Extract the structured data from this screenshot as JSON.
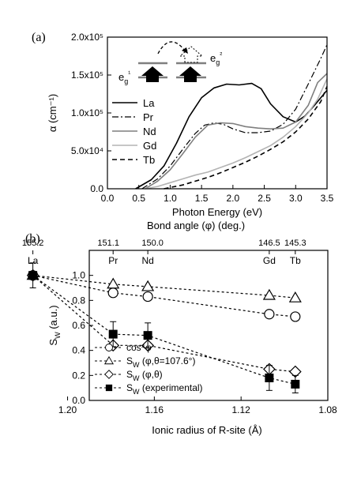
{
  "figure": {
    "panel_a_label": "(a)",
    "panel_b_label": "(b)"
  },
  "chart_data": [
    {
      "type": "line",
      "xlabel": "Photon Energy (eV)",
      "ylabel": "α (cm⁻¹)",
      "xlim": [
        0.0,
        3.5
      ],
      "ylim": [
        0,
        200000
      ],
      "xticks": [
        0.0,
        0.5,
        1.0,
        1.5,
        2.0,
        2.5,
        3.0,
        3.5
      ],
      "xtick_labels": [
        "0.0",
        "0.5",
        "1.0",
        "1.5",
        "2.0",
        "2.5",
        "3.0",
        "3.5"
      ],
      "yticks": [
        0,
        50000,
        100000,
        150000,
        200000
      ],
      "ytick_labels": [
        "0.0",
        "5.0x10⁴",
        "1.0x10⁵",
        "1.5x10⁵",
        "2.0x10⁵"
      ],
      "legend_position": "left",
      "inset": {
        "left_label": "e_g¹",
        "right_label": "e_g²"
      },
      "series": [
        {
          "name": "La",
          "color": "#000000",
          "dash": "solid",
          "width": 1.6,
          "x": [
            0.45,
            0.7,
            0.9,
            1.1,
            1.3,
            1.5,
            1.7,
            1.9,
            2.1,
            2.3,
            2.45,
            2.6,
            2.8,
            3.0,
            3.15,
            3.3,
            3.5
          ],
          "y": [
            0,
            12000,
            30000,
            60000,
            95000,
            120000,
            133000,
            138000,
            137000,
            139000,
            132000,
            112000,
            95000,
            88000,
            96000,
            110000,
            130000
          ]
        },
        {
          "name": "Pr",
          "color": "#000000",
          "dash": "dashdot",
          "width": 1.2,
          "x": [
            0.55,
            0.8,
            1.0,
            1.2,
            1.4,
            1.55,
            1.7,
            1.85,
            2.0,
            2.2,
            2.4,
            2.6,
            2.8,
            3.0,
            3.2,
            3.4,
            3.5
          ],
          "y": [
            0,
            13000,
            30000,
            52000,
            73000,
            84000,
            87000,
            85000,
            79000,
            74000,
            74000,
            76000,
            85000,
            105000,
            138000,
            172000,
            190000
          ]
        },
        {
          "name": "Nd",
          "color": "#7f7f7f",
          "dash": "solid",
          "width": 1.6,
          "x": [
            0.6,
            0.8,
            1.0,
            1.2,
            1.4,
            1.6,
            1.8,
            2.0,
            2.2,
            2.4,
            2.6,
            2.8,
            3.0,
            3.2,
            3.35,
            3.5
          ],
          "y": [
            0,
            10000,
            25000,
            46000,
            68000,
            84000,
            87000,
            86000,
            82000,
            80000,
            79000,
            80000,
            88000,
            110000,
            140000,
            152000
          ]
        },
        {
          "name": "Gd",
          "color": "#b3b3b3",
          "dash": "solid",
          "width": 1.6,
          "x": [
            0.6,
            0.8,
            1.0,
            1.2,
            1.4,
            1.6,
            1.8,
            2.0,
            2.2,
            2.4,
            2.6,
            2.8,
            3.0,
            3.2,
            3.35,
            3.5
          ],
          "y": [
            0,
            3000,
            8000,
            13000,
            18000,
            22000,
            28000,
            34000,
            41000,
            49000,
            57000,
            68000,
            82000,
            100000,
            118000,
            145000
          ]
        },
        {
          "name": "Tb",
          "color": "#000000",
          "dash": "dashed",
          "width": 1.6,
          "x": [
            0.9,
            1.2,
            1.4,
            1.6,
            1.8,
            2.0,
            2.2,
            2.4,
            2.6,
            2.8,
            3.0,
            3.2,
            3.4,
            3.5
          ],
          "y": [
            0,
            5000,
            10000,
            15000,
            21000,
            28000,
            35000,
            43000,
            52000,
            62000,
            75000,
            92000,
            115000,
            135000
          ]
        }
      ]
    },
    {
      "type": "scatter",
      "xlabel": "Ionic radius of R-site (Å)",
      "top_xlabel": "Bond angle (φ) (deg.)",
      "ylabel": "S_W (a.u.)",
      "xlim": [
        1.19,
        1.08
      ],
      "ylim": [
        0.0,
        1.2
      ],
      "xticks": [
        1.2,
        1.16,
        1.12,
        1.08
      ],
      "xtick_labels": [
        "1.20",
        "1.16",
        "1.12",
        "1.08"
      ],
      "yticks": [
        0.0,
        0.2,
        0.4,
        0.6,
        0.8,
        1.0
      ],
      "ytick_labels": [
        "0.0",
        "0.2",
        "0.4",
        "0.6",
        "0.8",
        "1.0"
      ],
      "legend_position": "bottom-left",
      "top_ticks": [
        {
          "x": 1.216,
          "label": "155.2"
        },
        {
          "x": 1.179,
          "label": "151.1"
        },
        {
          "x": 1.163,
          "label": "150.0"
        },
        {
          "x": 1.107,
          "label": "146.5"
        },
        {
          "x": 1.095,
          "label": "145.3"
        }
      ],
      "element_labels": [
        {
          "x": 1.216,
          "label": "La"
        },
        {
          "x": 1.179,
          "label": "Pr"
        },
        {
          "x": 1.163,
          "label": "Nd"
        },
        {
          "x": 1.107,
          "label": "Gd"
        },
        {
          "x": 1.095,
          "label": "Tb"
        }
      ],
      "series": [
        {
          "name": "cos⁴φ",
          "marker": "circle",
          "x": [
            1.216,
            1.179,
            1.163,
            1.107,
            1.095
          ],
          "y": [
            1.0,
            0.86,
            0.83,
            0.69,
            0.67
          ]
        },
        {
          "name": "S_W (φ,θ=107.6°)",
          "marker": "triangle",
          "x": [
            1.216,
            1.179,
            1.163,
            1.107,
            1.095
          ],
          "y": [
            1.0,
            0.93,
            0.91,
            0.84,
            0.82
          ]
        },
        {
          "name": "S_W (φ,θ)",
          "marker": "diamond",
          "x": [
            1.216,
            1.179,
            1.163,
            1.107,
            1.095
          ],
          "y": [
            1.0,
            0.44,
            0.44,
            0.25,
            0.23
          ]
        },
        {
          "name": "S_W (experimental)",
          "marker": "square-filled",
          "x": [
            1.216,
            1.179,
            1.163,
            1.107,
            1.095
          ],
          "y": [
            1.0,
            0.53,
            0.52,
            0.18,
            0.13
          ],
          "yerr": [
            0.1,
            0.1,
            0.1,
            0.1,
            0.07
          ]
        }
      ]
    }
  ]
}
